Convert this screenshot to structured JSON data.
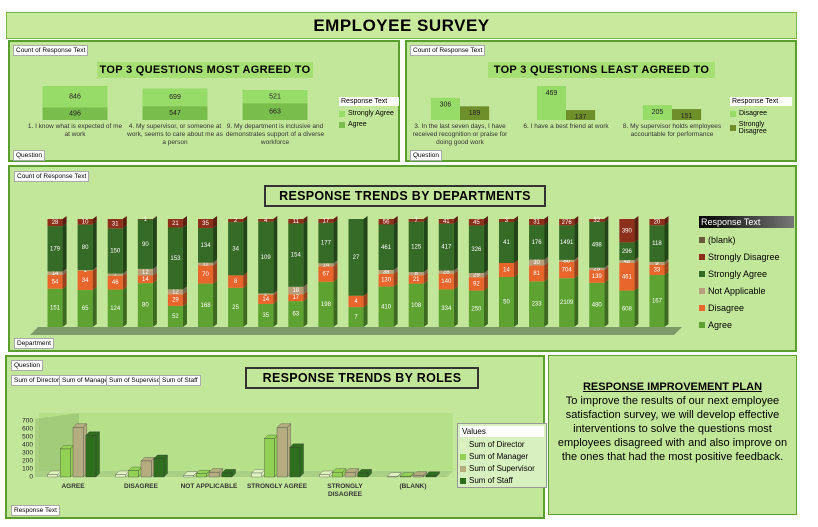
{
  "header": {
    "title": "EMPLOYEE SURVEY"
  },
  "chart_data": [
    {
      "type": "stacked_bar",
      "title": "TOP 3 QUESTIONS MOST AGREED TO",
      "field_buttons": [
        "Count of Response Text",
        "Question"
      ],
      "categories": [
        "1. I know what is expected of me at work",
        "4. My supervisor, or someone at work, seems to care about me as a person",
        "9. My department is inclusive and demonstrates support of a diverse workforce"
      ],
      "series": [
        {
          "name": "Agree",
          "color": "#79bd4c",
          "values": [
            496,
            547,
            663
          ]
        },
        {
          "name": "Strongly Agree",
          "color": "#97db68",
          "values": [
            846,
            699,
            521
          ]
        }
      ],
      "legend_title": "Response Text",
      "legend_position": "right",
      "legend_order": "reverse",
      "data_labels": true
    },
    {
      "type": "bar",
      "title": "TOP 3 QUESTIONS LEAST AGREED TO",
      "field_buttons": [
        "Count of Response Text",
        "Question"
      ],
      "categories": [
        "3. In the last seven days, I have received recognition or praise for doing good work",
        "6. I have a best friend at work",
        "8. My supervisor holds employees accountable for performance"
      ],
      "series": [
        {
          "name": "Disagree",
          "color": "#97db68",
          "values": [
            306,
            469,
            205
          ]
        },
        {
          "name": "Strongly Disagree",
          "color": "#6f8f2a",
          "values": [
            189,
            137,
            151
          ]
        }
      ],
      "legend_title": "Response Text",
      "legend_position": "right",
      "legend_order": "normal",
      "data_labels": true
    },
    {
      "type": "percent_stacked_bar",
      "title": "RESPONSE TRENDS BY DEPARTMENTS",
      "field_buttons": [
        "Count of Response Text",
        "Department"
      ],
      "series": [
        {
          "name": "Agree",
          "color": "#5ea332",
          "values": [
            151,
            65,
            124,
            80,
            52,
            168,
            25,
            35,
            63,
            198,
            7,
            410,
            108,
            334,
            250,
            50,
            233,
            2109,
            480,
            608,
            167
          ]
        },
        {
          "name": "Disagree",
          "color": "#e8662c",
          "values": [
            54,
            34,
            46,
            14,
            29,
            70,
            8,
            14,
            17,
            67,
            4,
            130,
            21,
            140,
            92,
            14,
            81,
            704,
            139,
            461,
            33
          ]
        },
        {
          "name": "Not Applicable",
          "color": "#b89f7a",
          "values": [
            14,
            1,
            7,
            12,
            12,
            11,
            null,
            2,
            18,
            14,
            null,
            38,
            8,
            28,
            29,
            null,
            30,
            86,
            25,
            48,
            9
          ]
        },
        {
          "name": "Strongly Agree",
          "color": "#356b26",
          "values": [
            179,
            80,
            150,
            90,
            153,
            134,
            34,
            109,
            154,
            177,
            27,
            461,
            125,
            417,
            326,
            41,
            176,
            1491,
            498,
            296,
            118
          ]
        },
        {
          "name": "Strongly Disagree",
          "color": "#8c2f1b",
          "values": [
            28,
            10,
            31,
            1,
            21,
            35,
            2,
            4,
            11,
            17,
            null,
            56,
            7,
            41,
            45,
            3,
            31,
            276,
            32,
            390,
            20
          ]
        },
        {
          "name": "(blank)",
          "color": "#6a5a3a",
          "values": [
            null,
            null,
            null,
            null,
            null,
            null,
            null,
            null,
            null,
            null,
            null,
            null,
            null,
            null,
            null,
            null,
            null,
            null,
            null,
            null,
            null
          ]
        }
      ],
      "legend_title": "Response Text",
      "legend_position": "right",
      "legend_order": "reverse",
      "data_labels": true
    },
    {
      "type": "bar",
      "title": "RESPONSE TRENDS BY ROLES",
      "three_d": true,
      "field_buttons": [
        "Question",
        "Sum of Director",
        "Sum of Manager",
        "Sum of Supervisor",
        "Sum of Staff",
        "Response Text"
      ],
      "categories": [
        "AGREE",
        "DISAGREE",
        "NOT APPLICABLE",
        "STRONGLY AGREE",
        "STRONGLY DISAGREE",
        "(BLANK)"
      ],
      "series": [
        {
          "name": "Sum of Director",
          "color": "#dff3c0",
          "values": [
            30,
            30,
            20,
            50,
            30,
            10
          ]
        },
        {
          "name": "Sum of Manager",
          "color": "#93d156",
          "values": [
            350,
            80,
            40,
            480,
            60,
            10
          ]
        },
        {
          "name": "Sum of Supervisor",
          "color": "#b4ad80",
          "values": [
            620,
            200,
            60,
            620,
            60,
            20
          ]
        },
        {
          "name": "Sum of Staff",
          "color": "#2f6d1f",
          "values": [
            520,
            230,
            50,
            370,
            50,
            20
          ]
        }
      ],
      "ylim": [
        0,
        700
      ],
      "yticks": [
        0,
        100,
        200,
        300,
        400,
        500,
        600,
        700
      ],
      "grid": false,
      "legend_title": "Values",
      "legend_position": "right",
      "legend_order": "normal",
      "data_labels": false
    }
  ],
  "plan": {
    "title": "RESPONSE IMPROVEMENT PLAN",
    "text": "To improve the results of our next employee satisfaction survey, we will develop effective interventions to solve the questions most employees disagreed with and also improve on the ones that had the most positive feedback."
  }
}
